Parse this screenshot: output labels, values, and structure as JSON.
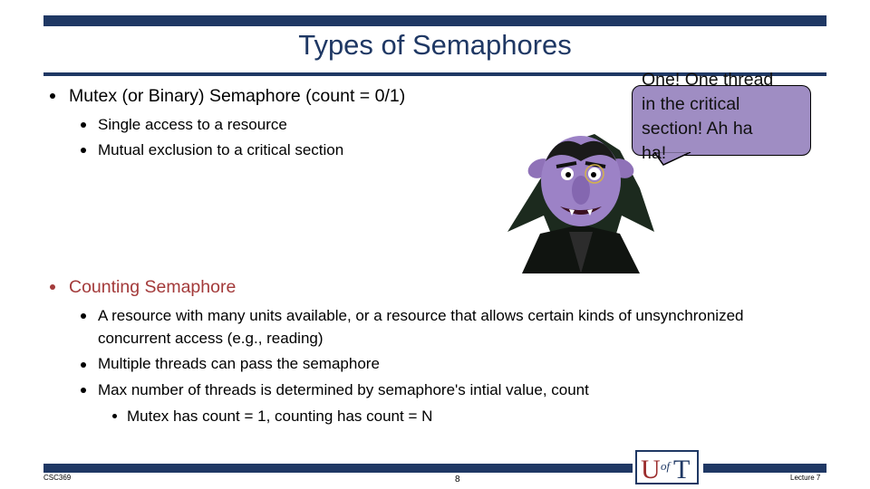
{
  "title": "Types of Semaphores",
  "bullets": {
    "mutex": {
      "text": "Mutex (or Binary) Semaphore (count = 0/1)",
      "subs": [
        "Single access to a resource",
        "Mutual exclusion to a critical section"
      ]
    },
    "counting": {
      "text": "Counting Semaphore",
      "subs": [
        "A resource with many units available, or a resource that allows certain kinds of unsynchronized",
        "concurrent access (e.g., reading)",
        "Multiple threads can pass the semaphore",
        "Max number of threads is determined by semaphore's intial value, count"
      ],
      "subsub": "Mutex has count = 1, counting has count = N"
    }
  },
  "bubble": {
    "lines": [
      "One! One thread",
      "in the critical",
      "section! Ah ha",
      "ha!"
    ]
  },
  "footer": {
    "course": "CSC369",
    "page": "8",
    "lecture": "Lecture 7",
    "logo_text": "UofT"
  },
  "colors": {
    "navy": "#1f3864",
    "accent_red": "#a33a3a",
    "bubble_purple": "#9f8dc3",
    "logo_red": "#9b2c2c"
  }
}
